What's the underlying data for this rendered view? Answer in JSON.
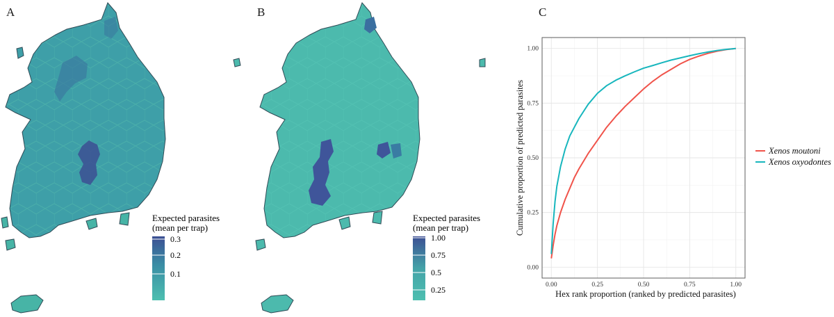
{
  "panels": [
    {
      "letter": "A",
      "legend": {
        "title_line1": "Expected parasites",
        "title_line2": "(mean per trap)",
        "ticks": [
          "0.3",
          "0.2",
          "0.1"
        ],
        "color_low": "#4dbfb0",
        "color_high": "#3c4f93"
      }
    },
    {
      "letter": "B",
      "legend": {
        "title_line1": "Expected parasites",
        "title_line2": "(mean per trap)",
        "ticks": [
          "1.00",
          "0.75",
          "0.5",
          "0.25"
        ],
        "color_low": "#4dbfb0",
        "color_high": "#3c4f93"
      }
    },
    {
      "letter": "C"
    }
  ],
  "colors": {
    "map_fill": "#47b4a6",
    "map_outline": "#2f4a55",
    "moutoni": "#f0534a",
    "oxyodontes": "#17b6bd",
    "grid": "#e6e6e6",
    "panel_border": "#5c5c5c"
  },
  "chart_data": {
    "type": "line",
    "xlabel": "Hex rank proportion (ranked by predicted parasites)",
    "ylabel": "Cumulative proportion of predicted parasites",
    "xlim": [
      0,
      1
    ],
    "ylim": [
      0,
      1
    ],
    "xticks": [
      "0.00",
      "0.25",
      "0.50",
      "0.75",
      "1.00"
    ],
    "yticks": [
      "0.00",
      "0.25",
      "0.50",
      "0.75",
      "1.00"
    ],
    "grid": true,
    "legend_position": "right",
    "series": [
      {
        "name": "Xenos moutoni",
        "color": "#f0534a",
        "x": [
          0.0,
          0.01,
          0.02,
          0.03,
          0.05,
          0.075,
          0.1,
          0.125,
          0.15,
          0.2,
          0.25,
          0.3,
          0.35,
          0.4,
          0.45,
          0.5,
          0.55,
          0.6,
          0.65,
          0.7,
          0.75,
          0.8,
          0.85,
          0.9,
          0.95,
          1.0
        ],
        "y": [
          0.04,
          0.1,
          0.15,
          0.19,
          0.25,
          0.31,
          0.36,
          0.41,
          0.45,
          0.52,
          0.58,
          0.64,
          0.69,
          0.735,
          0.775,
          0.815,
          0.85,
          0.88,
          0.905,
          0.93,
          0.95,
          0.965,
          0.978,
          0.988,
          0.995,
          1.0
        ]
      },
      {
        "name": "Xenos oxyodontes",
        "color": "#17b6bd",
        "x": [
          0.0,
          0.01,
          0.02,
          0.03,
          0.05,
          0.075,
          0.1,
          0.125,
          0.15,
          0.2,
          0.25,
          0.3,
          0.35,
          0.4,
          0.45,
          0.5,
          0.55,
          0.6,
          0.65,
          0.7,
          0.75,
          0.8,
          0.85,
          0.9,
          0.95,
          1.0
        ],
        "y": [
          0.06,
          0.2,
          0.3,
          0.37,
          0.46,
          0.54,
          0.6,
          0.64,
          0.68,
          0.745,
          0.795,
          0.83,
          0.855,
          0.875,
          0.893,
          0.91,
          0.922,
          0.935,
          0.947,
          0.957,
          0.967,
          0.976,
          0.984,
          0.991,
          0.996,
          1.0
        ]
      }
    ]
  }
}
